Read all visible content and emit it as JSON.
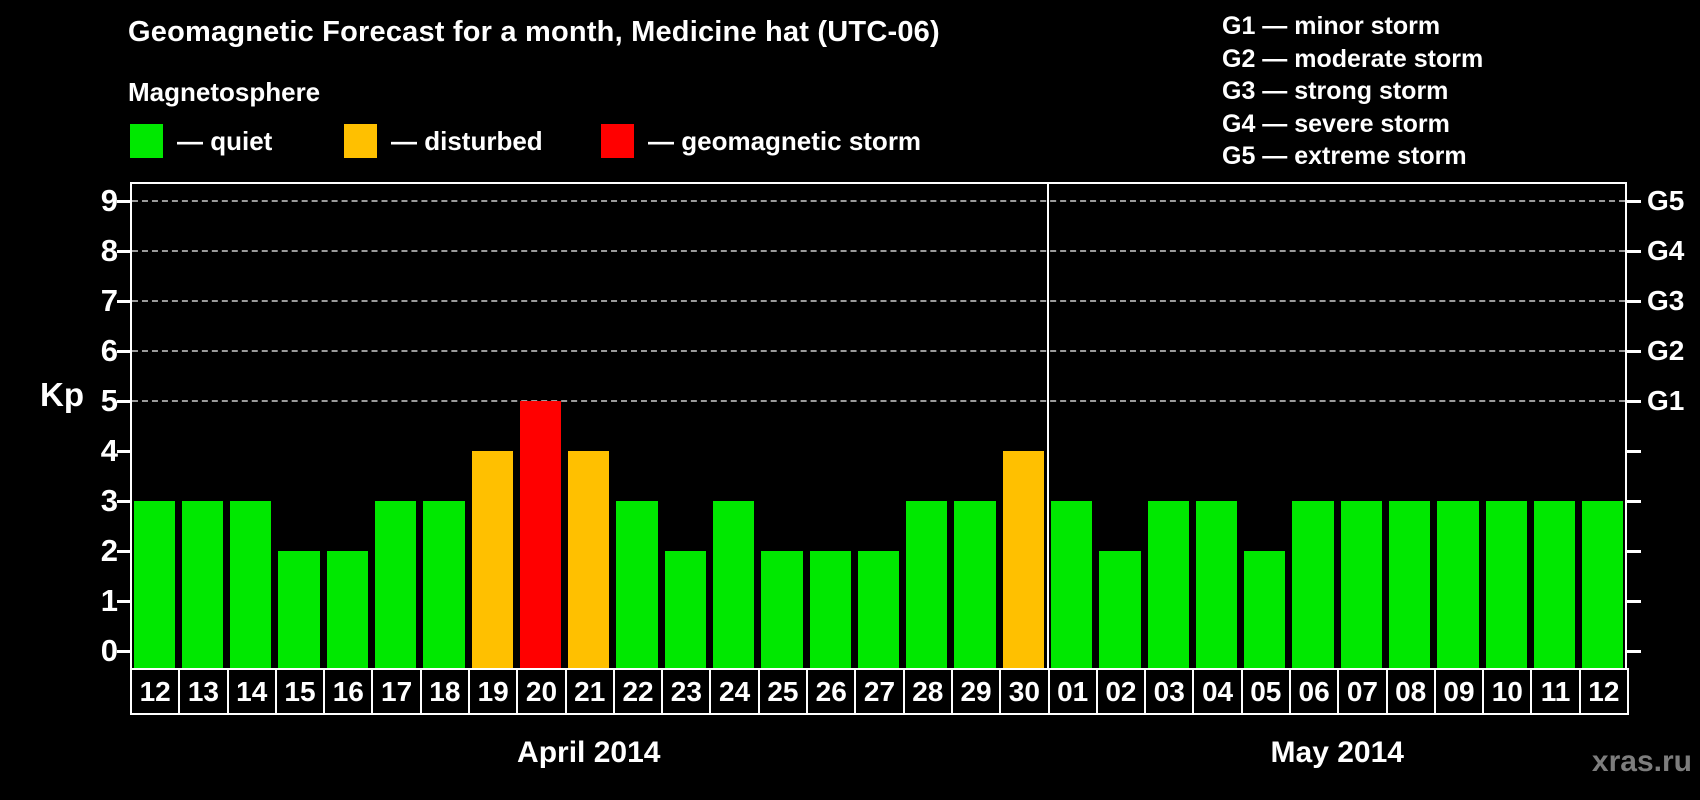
{
  "header": {
    "title": "Geomagnetic Forecast for a month, Medicine hat (UTC-06)",
    "subtitle": "Magnetosphere"
  },
  "legend": {
    "items": [
      {
        "label": "— quiet",
        "status": "quiet",
        "color": "#00e800"
      },
      {
        "label": "— disturbed",
        "status": "disturbed",
        "color": "#ffc000"
      },
      {
        "label": "— geomagnetic storm",
        "status": "storm",
        "color": "#ff0000"
      }
    ]
  },
  "g_scale_legend": {
    "lines": [
      "G1 — minor storm",
      "G2 — moderate storm",
      "G3 — strong storm",
      "G4 — severe storm",
      "G5 — extreme storm"
    ]
  },
  "watermark": "xras.ru",
  "chart_data": {
    "type": "bar",
    "title": "Geomagnetic Forecast for a month, Medicine hat (UTC-06)",
    "ylabel": "Kp",
    "ylim": [
      0,
      9
    ],
    "y_ticks": [
      0,
      1,
      2,
      3,
      4,
      5,
      6,
      7,
      8,
      9
    ],
    "gridline_kp_levels": [
      5,
      6,
      7,
      8,
      9
    ],
    "grid": "dashed-horizontal",
    "legend_position": "top-left",
    "right_axis_labels": [
      {
        "kp": 5,
        "label": "G1"
      },
      {
        "kp": 6,
        "label": "G2"
      },
      {
        "kp": 7,
        "label": "G3"
      },
      {
        "kp": 8,
        "label": "G4"
      },
      {
        "kp": 9,
        "label": "G5"
      }
    ],
    "status_colors": {
      "quiet": "#00e800",
      "disturbed": "#ffc000",
      "storm": "#ff0000"
    },
    "months": [
      {
        "label": "April 2014",
        "days": [
          {
            "day": "12",
            "kp": 3,
            "status": "quiet"
          },
          {
            "day": "13",
            "kp": 3,
            "status": "quiet"
          },
          {
            "day": "14",
            "kp": 3,
            "status": "quiet"
          },
          {
            "day": "15",
            "kp": 2,
            "status": "quiet"
          },
          {
            "day": "16",
            "kp": 2,
            "status": "quiet"
          },
          {
            "day": "17",
            "kp": 3,
            "status": "quiet"
          },
          {
            "day": "18",
            "kp": 3,
            "status": "quiet"
          },
          {
            "day": "19",
            "kp": 4,
            "status": "disturbed"
          },
          {
            "day": "20",
            "kp": 5,
            "status": "storm"
          },
          {
            "day": "21",
            "kp": 4,
            "status": "disturbed"
          },
          {
            "day": "22",
            "kp": 3,
            "status": "quiet"
          },
          {
            "day": "23",
            "kp": 2,
            "status": "quiet"
          },
          {
            "day": "24",
            "kp": 3,
            "status": "quiet"
          },
          {
            "day": "25",
            "kp": 2,
            "status": "quiet"
          },
          {
            "day": "26",
            "kp": 2,
            "status": "quiet"
          },
          {
            "day": "27",
            "kp": 2,
            "status": "quiet"
          },
          {
            "day": "28",
            "kp": 3,
            "status": "quiet"
          },
          {
            "day": "29",
            "kp": 3,
            "status": "quiet"
          },
          {
            "day": "30",
            "kp": 4,
            "status": "disturbed"
          }
        ]
      },
      {
        "label": "May 2014",
        "days": [
          {
            "day": "01",
            "kp": 3,
            "status": "quiet"
          },
          {
            "day": "02",
            "kp": 2,
            "status": "quiet"
          },
          {
            "day": "03",
            "kp": 3,
            "status": "quiet"
          },
          {
            "day": "04",
            "kp": 3,
            "status": "quiet"
          },
          {
            "day": "05",
            "kp": 2,
            "status": "quiet"
          },
          {
            "day": "06",
            "kp": 3,
            "status": "quiet"
          },
          {
            "day": "07",
            "kp": 3,
            "status": "quiet"
          },
          {
            "day": "08",
            "kp": 3,
            "status": "quiet"
          },
          {
            "day": "09",
            "kp": 3,
            "status": "quiet"
          },
          {
            "day": "10",
            "kp": 3,
            "status": "quiet"
          },
          {
            "day": "11",
            "kp": 3,
            "status": "quiet"
          },
          {
            "day": "12",
            "kp": 3,
            "status": "quiet"
          }
        ]
      }
    ]
  }
}
